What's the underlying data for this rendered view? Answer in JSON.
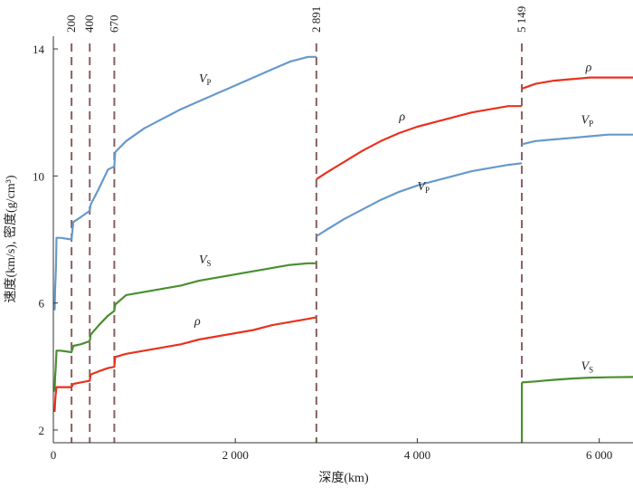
{
  "chart_data": {
    "type": "line",
    "xlabel": "深度(km)",
    "ylabel": "速度(km/s), 密度(g/cm³)",
    "xlim": [
      0,
      6371
    ],
    "ylim": [
      1.6,
      14.4
    ],
    "x_ticks": [
      0,
      2000,
      4000,
      6000
    ],
    "x_tick_labels": [
      "0",
      "2 000",
      "4 000",
      "6 000"
    ],
    "y_ticks": [
      2,
      6,
      10,
      14
    ],
    "y_tick_labels": [
      "2",
      "6",
      "10",
      "14"
    ],
    "grid": false,
    "legend": "none",
    "discontinuities": [
      {
        "depth": 200,
        "label": "200"
      },
      {
        "depth": 400,
        "label": "400"
      },
      {
        "depth": 670,
        "label": "670"
      },
      {
        "depth": 2891,
        "label": "2 891"
      },
      {
        "depth": 5149,
        "label": "5 149"
      }
    ],
    "series": [
      {
        "name": "Vp",
        "label_main": "V",
        "label_sub": "P",
        "color": "#6699cc",
        "labels_at": [
          [
            1600,
            12.95
          ],
          [
            4000,
            9.55
          ],
          [
            5800,
            11.65
          ]
        ],
        "segments": [
          [
            [
              0,
              5.8
            ],
            [
              15,
              5.8
            ],
            [
              20,
              6.5
            ],
            [
              25,
              6.8
            ],
            [
              30,
              7.3
            ],
            [
              35,
              8.05
            ],
            [
              80,
              8.05
            ],
            [
              200,
              8.0
            ],
            [
              220,
              8.55
            ],
            [
              300,
              8.7
            ],
            [
              400,
              8.9
            ],
            [
              410,
              9.1
            ],
            [
              500,
              9.6
            ],
            [
              600,
              10.2
            ],
            [
              670,
              10.3
            ],
            [
              680,
              10.75
            ],
            [
              800,
              11.1
            ],
            [
              1000,
              11.5
            ],
            [
              1200,
              11.8
            ],
            [
              1400,
              12.1
            ],
            [
              1600,
              12.35
            ],
            [
              1800,
              12.6
            ],
            [
              2000,
              12.85
            ],
            [
              2200,
              13.1
            ],
            [
              2400,
              13.35
            ],
            [
              2600,
              13.6
            ],
            [
              2800,
              13.75
            ],
            [
              2891,
              13.75
            ]
          ],
          [
            [
              2891,
              8.1
            ],
            [
              3000,
              8.3
            ],
            [
              3200,
              8.65
            ],
            [
              3400,
              8.95
            ],
            [
              3600,
              9.25
            ],
            [
              3800,
              9.5
            ],
            [
              4000,
              9.7
            ],
            [
              4200,
              9.85
            ],
            [
              4400,
              10.0
            ],
            [
              4600,
              10.15
            ],
            [
              4800,
              10.25
            ],
            [
              5000,
              10.35
            ],
            [
              5149,
              10.4
            ]
          ],
          [
            [
              5149,
              11.0
            ],
            [
              5300,
              11.1
            ],
            [
              5500,
              11.15
            ],
            [
              5700,
              11.2
            ],
            [
              5900,
              11.25
            ],
            [
              6100,
              11.3
            ],
            [
              6371,
              11.3
            ]
          ]
        ]
      },
      {
        "name": "Vs",
        "label_main": "V",
        "label_sub": "S",
        "color": "#4a8f2f",
        "labels_at": [
          [
            1600,
            7.25
          ],
          [
            5800,
            3.9
          ]
        ],
        "segments": [
          [
            [
              0,
              3.2
            ],
            [
              15,
              3.3
            ],
            [
              20,
              3.7
            ],
            [
              25,
              3.9
            ],
            [
              30,
              4.2
            ],
            [
              35,
              4.5
            ],
            [
              80,
              4.5
            ],
            [
              200,
              4.45
            ],
            [
              220,
              4.65
            ],
            [
              300,
              4.7
            ],
            [
              400,
              4.8
            ],
            [
              410,
              5.0
            ],
            [
              500,
              5.3
            ],
            [
              600,
              5.6
            ],
            [
              670,
              5.75
            ],
            [
              680,
              5.95
            ],
            [
              800,
              6.25
            ],
            [
              1000,
              6.35
            ],
            [
              1200,
              6.45
            ],
            [
              1400,
              6.55
            ],
            [
              1600,
              6.7
            ],
            [
              1800,
              6.8
            ],
            [
              2000,
              6.9
            ],
            [
              2200,
              7.0
            ],
            [
              2400,
              7.1
            ],
            [
              2600,
              7.2
            ],
            [
              2800,
              7.25
            ],
            [
              2891,
              7.25
            ]
          ],
          [
            [
              2891,
              1.7
            ],
            [
              2891,
              0.0
            ]
          ],
          [
            [
              5149,
              0.0
            ],
            [
              5149,
              3.5
            ]
          ],
          [
            [
              5149,
              3.5
            ],
            [
              5300,
              3.53
            ],
            [
              5500,
              3.58
            ],
            [
              5700,
              3.62
            ],
            [
              5900,
              3.65
            ],
            [
              6100,
              3.66
            ],
            [
              6371,
              3.67
            ]
          ]
        ]
      },
      {
        "name": "rho",
        "label_main": "ρ",
        "label_sub": "",
        "color": "#e8321e",
        "labels_at": [
          [
            1550,
            5.3
          ],
          [
            3800,
            11.75
          ],
          [
            5850,
            13.3
          ]
        ],
        "segments": [
          [
            [
              0,
              2.6
            ],
            [
              15,
              2.6
            ],
            [
              20,
              2.9
            ],
            [
              25,
              3.1
            ],
            [
              35,
              3.35
            ],
            [
              80,
              3.35
            ],
            [
              200,
              3.35
            ],
            [
              220,
              3.45
            ],
            [
              300,
              3.5
            ],
            [
              400,
              3.55
            ],
            [
              410,
              3.75
            ],
            [
              500,
              3.85
            ],
            [
              600,
              3.95
            ],
            [
              670,
              3.99
            ],
            [
              680,
              4.3
            ],
            [
              800,
              4.4
            ],
            [
              1000,
              4.5
            ],
            [
              1200,
              4.6
            ],
            [
              1400,
              4.7
            ],
            [
              1600,
              4.85
            ],
            [
              1800,
              4.95
            ],
            [
              2000,
              5.05
            ],
            [
              2200,
              5.15
            ],
            [
              2400,
              5.3
            ],
            [
              2600,
              5.4
            ],
            [
              2800,
              5.5
            ],
            [
              2891,
              5.55
            ]
          ],
          [
            [
              2891,
              9.9
            ],
            [
              3000,
              10.1
            ],
            [
              3200,
              10.45
            ],
            [
              3400,
              10.8
            ],
            [
              3600,
              11.1
            ],
            [
              3800,
              11.35
            ],
            [
              4000,
              11.55
            ],
            [
              4200,
              11.7
            ],
            [
              4400,
              11.85
            ],
            [
              4600,
              12.0
            ],
            [
              4800,
              12.1
            ],
            [
              5000,
              12.2
            ],
            [
              5149,
              12.2
            ]
          ],
          [
            [
              5149,
              12.75
            ],
            [
              5300,
              12.9
            ],
            [
              5500,
              13.0
            ],
            [
              5700,
              13.05
            ],
            [
              5900,
              13.1
            ],
            [
              6100,
              13.1
            ],
            [
              6371,
              13.1
            ]
          ]
        ]
      }
    ]
  }
}
